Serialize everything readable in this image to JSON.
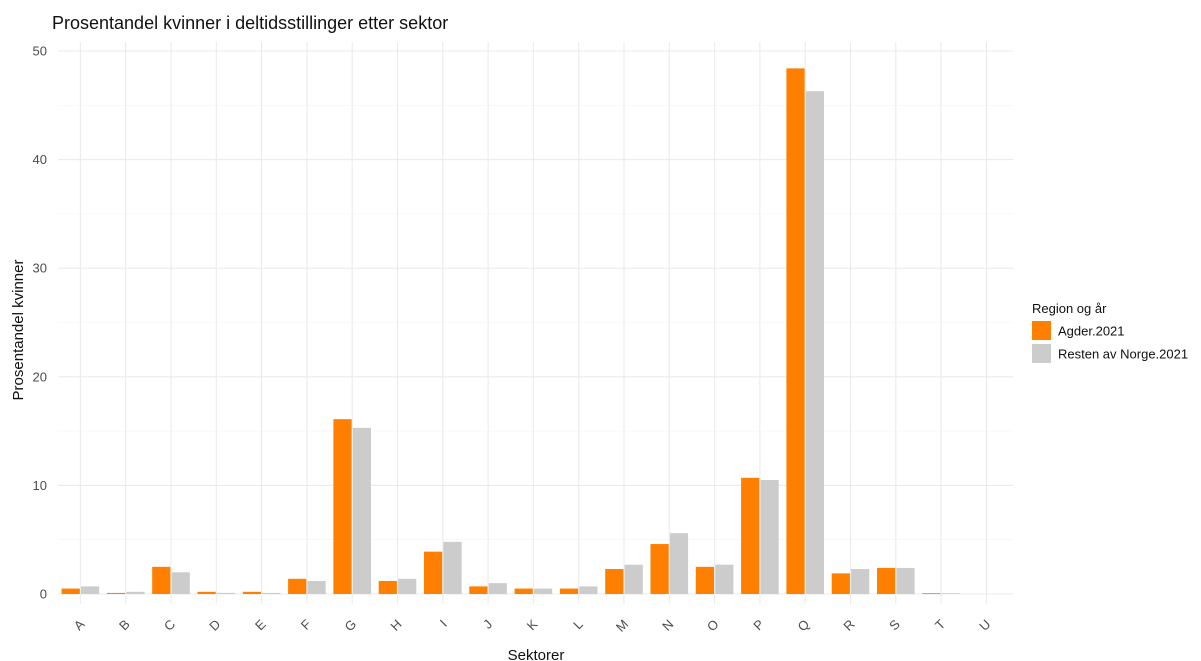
{
  "chart_data": {
    "type": "bar",
    "title": "Prosentandel kvinner i deltidsstillinger etter sektor",
    "xlabel": "Sektorer",
    "ylabel": "Prosentandel kvinner",
    "ylim": [
      0,
      50
    ],
    "yticks": [
      0,
      10,
      20,
      30,
      40,
      50
    ],
    "grid": true,
    "legend_title": "Region og år",
    "legend_position": "right",
    "categories": [
      "A",
      "B",
      "C",
      "D",
      "E",
      "F",
      "G",
      "H",
      "I",
      "J",
      "K",
      "L",
      "M",
      "N",
      "O",
      "P",
      "Q",
      "R",
      "S",
      "T",
      "U"
    ],
    "series": [
      {
        "name": "Agder.2021",
        "color": "#ff7f00",
        "values": [
          0.5,
          0.1,
          2.5,
          0.2,
          0.2,
          1.4,
          16.1,
          1.2,
          3.9,
          0.7,
          0.5,
          0.5,
          2.3,
          4.6,
          2.5,
          10.7,
          48.4,
          1.9,
          2.4,
          0.05,
          0.0
        ]
      },
      {
        "name": "Resten av Norge.2021",
        "color": "#cccccc",
        "values": [
          0.7,
          0.2,
          2.0,
          0.1,
          0.1,
          1.2,
          15.3,
          1.4,
          4.8,
          1.0,
          0.5,
          0.7,
          2.7,
          5.6,
          2.7,
          10.5,
          46.3,
          2.3,
          2.4,
          0.05,
          0.0
        ]
      }
    ]
  }
}
